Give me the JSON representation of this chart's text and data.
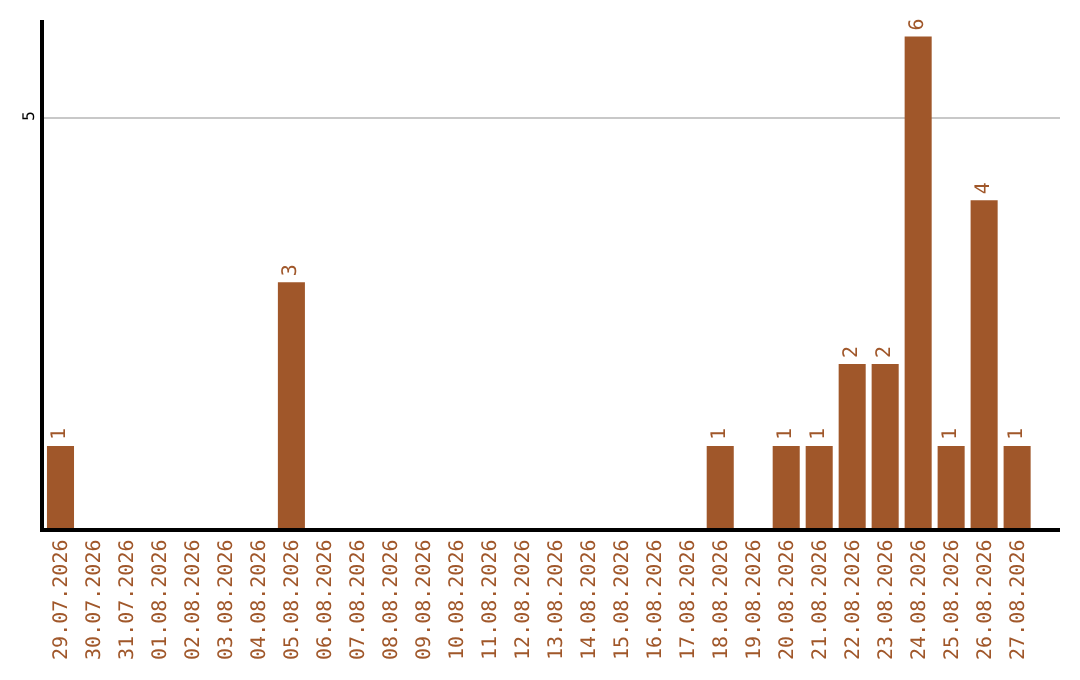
{
  "chart_data": {
    "type": "bar",
    "categories": [
      "29.07.2026",
      "30.07.2026",
      "31.07.2026",
      "01.08.2026",
      "02.08.2026",
      "03.08.2026",
      "04.08.2026",
      "05.08.2026",
      "06.08.2026",
      "07.08.2026",
      "08.08.2026",
      "09.08.2026",
      "10.08.2026",
      "11.08.2026",
      "12.08.2026",
      "13.08.2026",
      "14.08.2026",
      "15.08.2026",
      "16.08.2026",
      "17.08.2026",
      "18.08.2026",
      "19.08.2026",
      "20.08.2026",
      "21.08.2026",
      "22.08.2026",
      "23.08.2026",
      "24.08.2026",
      "25.08.2026",
      "26.08.2026",
      "27.08.2026"
    ],
    "values": [
      1,
      0,
      0,
      0,
      0,
      0,
      0,
      3,
      0,
      0,
      0,
      0,
      0,
      0,
      0,
      0,
      0,
      0,
      0,
      0,
      1,
      0,
      1,
      1,
      2,
      2,
      6,
      1,
      4,
      1
    ],
    "value_labels": [
      "1",
      null,
      null,
      null,
      null,
      null,
      null,
      "3",
      null,
      null,
      null,
      null,
      null,
      null,
      null,
      null,
      null,
      null,
      null,
      null,
      "1",
      null,
      "1",
      "1",
      "2",
      "2",
      "6",
      "1",
      "4",
      "1"
    ],
    "color": "#a0572a",
    "ylim": [
      0,
      6.2
    ],
    "yticks": [
      5
    ],
    "grid": "y",
    "legend": false
  }
}
